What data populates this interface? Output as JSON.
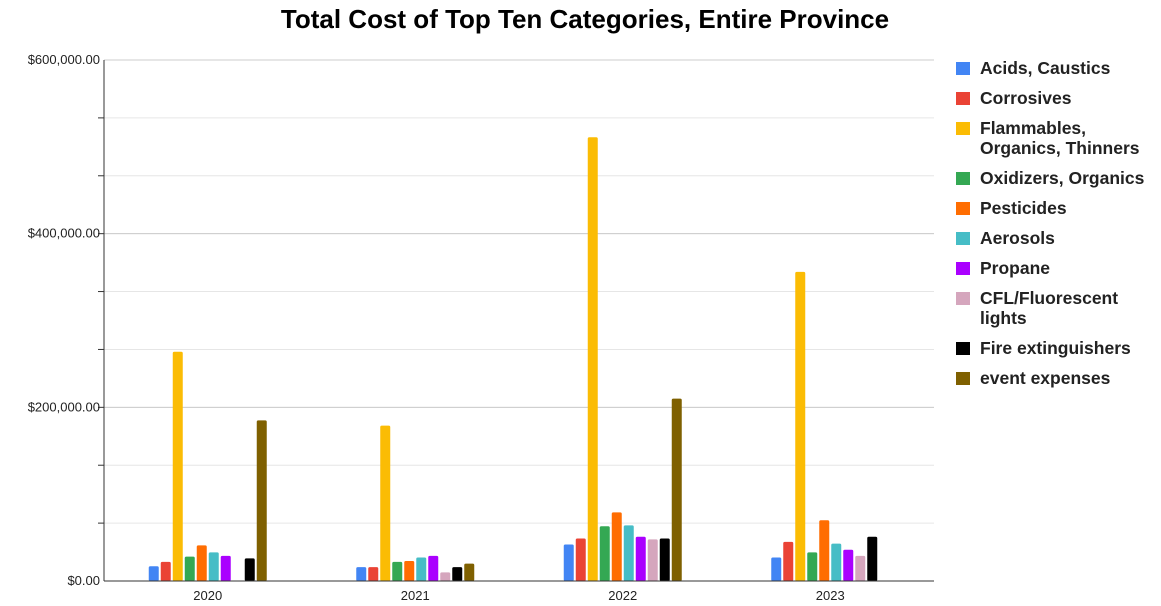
{
  "chart_data": {
    "type": "bar",
    "title": "Total Cost of Top Ten Categories, Entire Province",
    "categories": [
      "2020",
      "2021",
      "2022",
      "2023"
    ],
    "ylim": [
      0,
      600000
    ],
    "yticks": [
      0,
      200000,
      400000,
      600000
    ],
    "ytick_labels": [
      "$0.00",
      "$200,000.00",
      "$400,000.00",
      "$600,000.00"
    ],
    "grid": true,
    "legend_position": "right",
    "series": [
      {
        "name": "Acids, Caustics",
        "color": "#4285F4",
        "values": [
          17000,
          16000,
          42000,
          27000
        ]
      },
      {
        "name": "Corrosives",
        "color": "#EA4335",
        "values": [
          22000,
          16000,
          49000,
          45000
        ]
      },
      {
        "name": "Flammables, Organics, Thinners",
        "color": "#FBBC04",
        "values": [
          264000,
          179000,
          511000,
          356000
        ]
      },
      {
        "name": "Oxidizers, Organics",
        "color": "#34A853",
        "values": [
          28000,
          22000,
          63000,
          33000
        ]
      },
      {
        "name": "Pesticides",
        "color": "#FF6D01",
        "values": [
          41000,
          23000,
          79000,
          70000
        ]
      },
      {
        "name": "Aerosols",
        "color": "#46BDC6",
        "values": [
          33000,
          27000,
          64000,
          43000
        ]
      },
      {
        "name": "Propane",
        "color": "#AA00FF",
        "values": [
          29000,
          29000,
          51000,
          36000
        ]
      },
      {
        "name": "CFL/Fluorescent lights",
        "color": "#D5A6BD",
        "values": [
          0,
          10000,
          48000,
          29000
        ]
      },
      {
        "name": "Fire extinguishers",
        "color": "#000000",
        "values": [
          26000,
          16000,
          49000,
          51000
        ]
      },
      {
        "name": "event expenses",
        "color": "#7F6000",
        "values": [
          185000,
          20000,
          210000,
          0
        ]
      }
    ]
  },
  "legend": [
    {
      "lines": [
        "Acids, Caustics"
      ]
    },
    {
      "lines": [
        "Corrosives"
      ]
    },
    {
      "lines": [
        "Flammables,",
        "Organics, Thinners"
      ]
    },
    {
      "lines": [
        "Oxidizers, Organics"
      ]
    },
    {
      "lines": [
        "Pesticides"
      ]
    },
    {
      "lines": [
        "Aerosols"
      ]
    },
    {
      "lines": [
        "Propane"
      ]
    },
    {
      "lines": [
        "CFL/Fluorescent",
        "lights"
      ]
    },
    {
      "lines": [
        "Fire extinguishers"
      ]
    },
    {
      "lines": [
        "event expenses"
      ]
    }
  ]
}
